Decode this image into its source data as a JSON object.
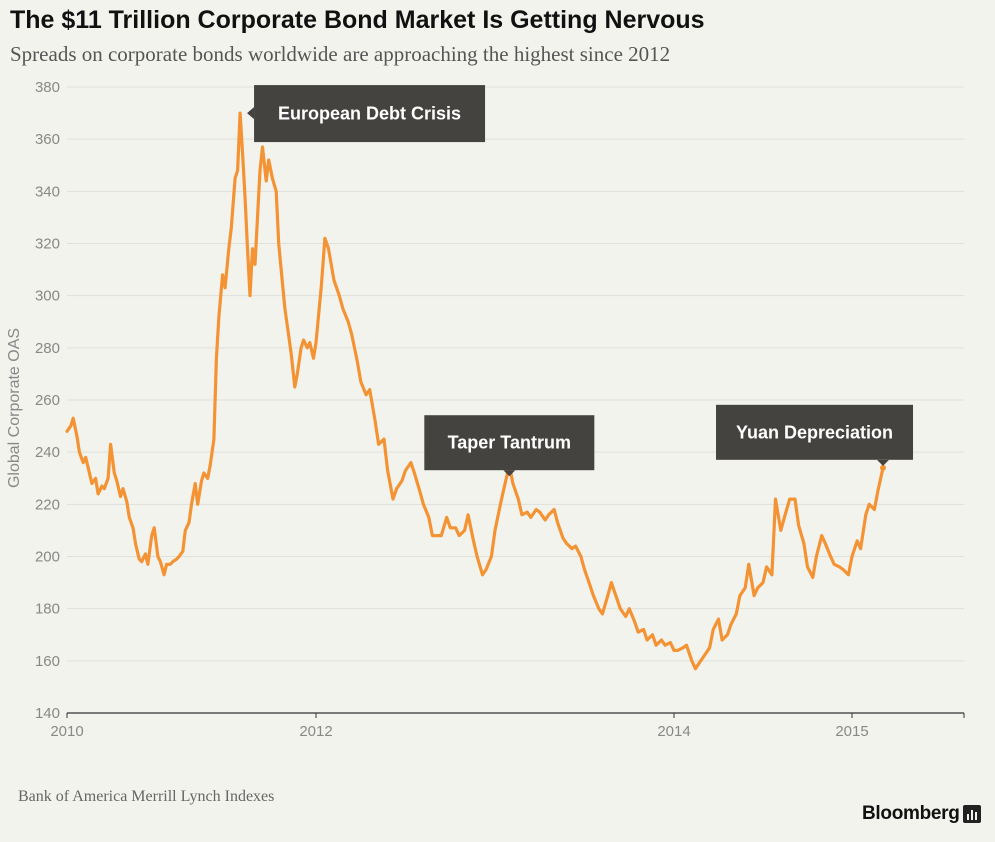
{
  "header": {
    "title": "The $11 Trillion Corporate Bond Market Is Getting Nervous",
    "subtitle": "Spreads on corporate bonds worldwide are approaching the highest since 2012"
  },
  "footer": {
    "source": "Bank of America Merrill Lynch Indexes",
    "brand": "Bloomberg"
  },
  "colors": {
    "line": "#f39334",
    "annotation": "#444340",
    "background": "#f3f3ee"
  },
  "chart_data": {
    "type": "line",
    "ylabel": "Global Corporate OAS",
    "xlabel": "",
    "ylim": [
      140,
      380
    ],
    "xlim": [
      2010.0,
      2015.65
    ],
    "grid": true,
    "yticks": [
      140,
      160,
      180,
      200,
      220,
      240,
      260,
      280,
      300,
      320,
      340,
      360,
      380
    ],
    "xticks": [
      {
        "value": 2010,
        "label": "2010"
      },
      {
        "value": 2012,
        "label": "2012"
      },
      {
        "value": 2014,
        "label": "2014"
      },
      {
        "value": 2015,
        "label": "2015"
      }
    ],
    "series": [
      {
        "color": "#f39334",
        "points": [
          [
            2010.0,
            248
          ],
          [
            2010.03,
            250
          ],
          [
            2010.05,
            253
          ],
          [
            2010.08,
            246
          ],
          [
            2010.1,
            240
          ],
          [
            2010.13,
            236
          ],
          [
            2010.15,
            238
          ],
          [
            2010.18,
            232
          ],
          [
            2010.2,
            228
          ],
          [
            2010.23,
            230
          ],
          [
            2010.25,
            224
          ],
          [
            2010.28,
            227
          ],
          [
            2010.3,
            226
          ],
          [
            2010.33,
            230
          ],
          [
            2010.35,
            243
          ],
          [
            2010.38,
            232
          ],
          [
            2010.4,
            229
          ],
          [
            2010.43,
            223
          ],
          [
            2010.45,
            226
          ],
          [
            2010.48,
            221
          ],
          [
            2010.5,
            215
          ],
          [
            2010.53,
            211
          ],
          [
            2010.55,
            205
          ],
          [
            2010.58,
            199
          ],
          [
            2010.6,
            198
          ],
          [
            2010.63,
            201
          ],
          [
            2010.65,
            197
          ],
          [
            2010.68,
            208
          ],
          [
            2010.7,
            211
          ],
          [
            2010.73,
            200
          ],
          [
            2010.75,
            198
          ],
          [
            2010.78,
            193
          ],
          [
            2010.8,
            197
          ],
          [
            2010.83,
            197
          ],
          [
            2010.85,
            198
          ],
          [
            2010.88,
            199
          ],
          [
            2010.9,
            200
          ],
          [
            2010.93,
            202
          ],
          [
            2010.95,
            210
          ],
          [
            2010.98,
            213
          ],
          [
            2011.0,
            220
          ],
          [
            2011.03,
            228
          ],
          [
            2011.05,
            220
          ],
          [
            2011.08,
            229
          ],
          [
            2011.1,
            232
          ],
          [
            2011.13,
            230
          ],
          [
            2011.15,
            235
          ],
          [
            2011.18,
            245
          ],
          [
            2011.2,
            276
          ],
          [
            2011.22,
            292
          ],
          [
            2011.25,
            308
          ],
          [
            2011.27,
            303
          ],
          [
            2011.3,
            318
          ],
          [
            2011.32,
            326
          ],
          [
            2011.35,
            345
          ],
          [
            2011.37,
            348
          ],
          [
            2011.39,
            370
          ],
          [
            2011.41,
            355
          ],
          [
            2011.43,
            338
          ],
          [
            2011.45,
            318
          ],
          [
            2011.47,
            300
          ],
          [
            2011.49,
            318
          ],
          [
            2011.51,
            312
          ],
          [
            2011.53,
            330
          ],
          [
            2011.55,
            348
          ],
          [
            2011.57,
            357
          ],
          [
            2011.6,
            344
          ],
          [
            2011.62,
            352
          ],
          [
            2011.65,
            345
          ],
          [
            2011.68,
            340
          ],
          [
            2011.7,
            320
          ],
          [
            2011.73,
            305
          ],
          [
            2011.75,
            295
          ],
          [
            2011.78,
            285
          ],
          [
            2011.8,
            278
          ],
          [
            2011.83,
            265
          ],
          [
            2011.85,
            270
          ],
          [
            2011.88,
            280
          ],
          [
            2011.9,
            283
          ],
          [
            2011.93,
            280
          ],
          [
            2011.95,
            282
          ],
          [
            2011.98,
            276
          ],
          [
            2012.0,
            282
          ],
          [
            2012.03,
            304
          ],
          [
            2012.05,
            322
          ],
          [
            2012.07,
            318
          ],
          [
            2012.1,
            306
          ],
          [
            2012.13,
            300
          ],
          [
            2012.15,
            295
          ],
          [
            2012.18,
            290
          ],
          [
            2012.2,
            285
          ],
          [
            2012.23,
            275
          ],
          [
            2012.25,
            267
          ],
          [
            2012.28,
            262
          ],
          [
            2012.3,
            264
          ],
          [
            2012.33,
            252
          ],
          [
            2012.35,
            243
          ],
          [
            2012.38,
            245
          ],
          [
            2012.4,
            233
          ],
          [
            2012.43,
            222
          ],
          [
            2012.45,
            226
          ],
          [
            2012.48,
            229
          ],
          [
            2012.5,
            233
          ],
          [
            2012.53,
            236
          ],
          [
            2012.55,
            232
          ],
          [
            2012.58,
            225
          ],
          [
            2012.6,
            220
          ],
          [
            2012.63,
            215
          ],
          [
            2012.65,
            208
          ],
          [
            2012.68,
            208
          ],
          [
            2012.7,
            208
          ],
          [
            2012.73,
            215
          ],
          [
            2012.75,
            211
          ],
          [
            2012.78,
            211
          ],
          [
            2012.8,
            208
          ],
          [
            2012.83,
            210
          ],
          [
            2012.85,
            216
          ],
          [
            2012.88,
            206
          ],
          [
            2012.9,
            200
          ],
          [
            2012.93,
            193
          ],
          [
            2012.95,
            195
          ],
          [
            2012.98,
            200
          ],
          [
            2013.0,
            210
          ],
          [
            2013.03,
            220
          ],
          [
            2013.05,
            226
          ],
          [
            2013.08,
            235
          ],
          [
            2013.1,
            228
          ],
          [
            2013.13,
            222
          ],
          [
            2013.15,
            216
          ],
          [
            2013.18,
            217
          ],
          [
            2013.2,
            215
          ],
          [
            2013.23,
            218
          ],
          [
            2013.25,
            217
          ],
          [
            2013.28,
            214
          ],
          [
            2013.3,
            216
          ],
          [
            2013.33,
            218
          ],
          [
            2013.35,
            213
          ],
          [
            2013.38,
            207
          ],
          [
            2013.4,
            205
          ],
          [
            2013.43,
            203
          ],
          [
            2013.45,
            204
          ],
          [
            2013.48,
            200
          ],
          [
            2013.5,
            195
          ],
          [
            2013.53,
            189
          ],
          [
            2013.55,
            185
          ],
          [
            2013.58,
            180
          ],
          [
            2013.6,
            178
          ],
          [
            2013.63,
            185
          ],
          [
            2013.65,
            190
          ],
          [
            2013.68,
            184
          ],
          [
            2013.7,
            180
          ],
          [
            2013.73,
            177
          ],
          [
            2013.75,
            180
          ],
          [
            2013.78,
            175
          ],
          [
            2013.8,
            171
          ],
          [
            2013.83,
            172
          ],
          [
            2013.85,
            168
          ],
          [
            2013.88,
            170
          ],
          [
            2013.9,
            166
          ],
          [
            2013.93,
            168
          ],
          [
            2013.95,
            166
          ],
          [
            2013.98,
            167
          ],
          [
            2014.0,
            164
          ],
          [
            2014.02,
            164
          ],
          [
            2014.05,
            165
          ],
          [
            2014.07,
            166
          ],
          [
            2014.1,
            160
          ],
          [
            2014.12,
            157
          ],
          [
            2014.15,
            160
          ],
          [
            2014.17,
            162
          ],
          [
            2014.2,
            165
          ],
          [
            2014.22,
            172
          ],
          [
            2014.25,
            176
          ],
          [
            2014.27,
            168
          ],
          [
            2014.3,
            170
          ],
          [
            2014.32,
            174
          ],
          [
            2014.35,
            178
          ],
          [
            2014.37,
            185
          ],
          [
            2014.4,
            188
          ],
          [
            2014.42,
            197
          ],
          [
            2014.45,
            185
          ],
          [
            2014.47,
            188
          ],
          [
            2014.5,
            190
          ],
          [
            2014.52,
            196
          ],
          [
            2014.55,
            193
          ],
          [
            2014.57,
            222
          ],
          [
            2014.6,
            210
          ],
          [
            2014.62,
            215
          ],
          [
            2014.65,
            222
          ],
          [
            2014.68,
            222
          ],
          [
            2014.7,
            212
          ],
          [
            2014.73,
            205
          ],
          [
            2014.75,
            196
          ],
          [
            2014.78,
            192
          ],
          [
            2014.8,
            200
          ],
          [
            2014.83,
            208
          ],
          [
            2014.85,
            205
          ],
          [
            2014.88,
            200
          ],
          [
            2014.9,
            197
          ],
          [
            2014.93,
            196
          ],
          [
            2014.95,
            195
          ],
          [
            2014.98,
            193
          ],
          [
            2015.0,
            200
          ],
          [
            2015.03,
            206
          ],
          [
            2015.05,
            203
          ],
          [
            2015.08,
            216
          ],
          [
            2015.1,
            220
          ],
          [
            2015.13,
            218
          ],
          [
            2015.15,
            225
          ],
          [
            2015.18,
            234
          ]
        ]
      }
    ],
    "annotations": [
      {
        "label": "European Debt Crisis",
        "x": 2011.39,
        "y": 370,
        "side": "right"
      },
      {
        "label": "Taper Tantrum",
        "x": 2013.08,
        "y": 235,
        "side": "above"
      },
      {
        "label": "Yuan Depreciation",
        "x": 2015.18,
        "y": 234,
        "side": "above"
      }
    ]
  }
}
